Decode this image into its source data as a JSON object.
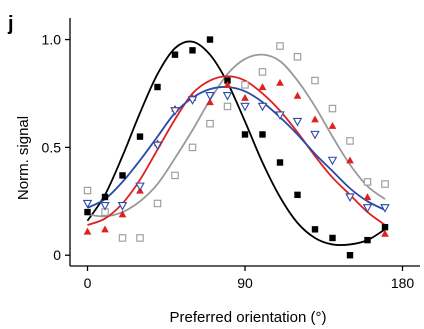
{
  "chart_data": {
    "type": "scatter",
    "panel_label": "j",
    "xlabel": "Preferred orientation (°)",
    "ylabel": "Norm. signal",
    "xlim": [
      -10,
      190
    ],
    "ylim": [
      -0.05,
      1.1
    ],
    "xticks": [
      0,
      90,
      180
    ],
    "yticks": [
      0,
      0.5,
      1.0
    ],
    "xtick_labels": [
      "0",
      "90",
      "180"
    ],
    "ytick_labels": [
      "0",
      "0.5",
      "1.0"
    ],
    "grid": false,
    "legend": false,
    "series": [
      {
        "color": "#000000",
        "marker": "filled-square",
        "points": [
          [
            0,
            0.2
          ],
          [
            10,
            0.27
          ],
          [
            20,
            0.37
          ],
          [
            30,
            0.55
          ],
          [
            40,
            0.78
          ],
          [
            50,
            0.93
          ],
          [
            60,
            0.95
          ],
          [
            70,
            1.0
          ],
          [
            80,
            0.81
          ],
          [
            90,
            0.56
          ],
          [
            100,
            0.56
          ],
          [
            110,
            0.43
          ],
          [
            120,
            0.28
          ],
          [
            130,
            0.12
          ],
          [
            140,
            0.08
          ],
          [
            150,
            0.0
          ],
          [
            160,
            0.07
          ],
          [
            170,
            0.13
          ]
        ],
        "fit": [
          [
            0,
            0.16
          ],
          [
            10,
            0.28
          ],
          [
            20,
            0.46
          ],
          [
            30,
            0.66
          ],
          [
            40,
            0.84
          ],
          [
            50,
            0.96
          ],
          [
            60,
            0.99
          ],
          [
            70,
            0.93
          ],
          [
            80,
            0.8
          ],
          [
            90,
            0.62
          ],
          [
            100,
            0.43
          ],
          [
            110,
            0.27
          ],
          [
            120,
            0.15
          ],
          [
            130,
            0.08
          ],
          [
            140,
            0.05
          ],
          [
            150,
            0.05
          ],
          [
            160,
            0.07
          ],
          [
            170,
            0.12
          ]
        ]
      },
      {
        "color": "#999999",
        "marker": "open-square",
        "points": [
          [
            0,
            0.3
          ],
          [
            10,
            0.2
          ],
          [
            20,
            0.08
          ],
          [
            30,
            0.08
          ],
          [
            40,
            0.24
          ],
          [
            50,
            0.37
          ],
          [
            60,
            0.5
          ],
          [
            70,
            0.61
          ],
          [
            80,
            0.69
          ],
          [
            90,
            0.79
          ],
          [
            100,
            0.85
          ],
          [
            110,
            0.97
          ],
          [
            120,
            0.92
          ],
          [
            130,
            0.81
          ],
          [
            140,
            0.68
          ],
          [
            150,
            0.53
          ],
          [
            160,
            0.34
          ],
          [
            170,
            0.33
          ]
        ],
        "fit": [
          [
            0,
            0.19
          ],
          [
            10,
            0.18
          ],
          [
            20,
            0.2
          ],
          [
            30,
            0.25
          ],
          [
            40,
            0.33
          ],
          [
            50,
            0.45
          ],
          [
            60,
            0.58
          ],
          [
            70,
            0.72
          ],
          [
            80,
            0.84
          ],
          [
            90,
            0.91
          ],
          [
            100,
            0.93
          ],
          [
            110,
            0.9
          ],
          [
            120,
            0.81
          ],
          [
            130,
            0.69
          ],
          [
            140,
            0.55
          ],
          [
            150,
            0.42
          ],
          [
            160,
            0.32
          ],
          [
            170,
            0.26
          ]
        ]
      },
      {
        "color": "#e02020",
        "marker": "filled-triangle",
        "points": [
          [
            0,
            0.11
          ],
          [
            10,
            0.12
          ],
          [
            20,
            0.19
          ],
          [
            30,
            0.3
          ],
          [
            40,
            0.52
          ],
          [
            50,
            0.68
          ],
          [
            60,
            0.73
          ],
          [
            70,
            0.71
          ],
          [
            80,
            0.79
          ],
          [
            90,
            0.73
          ],
          [
            100,
            0.78
          ],
          [
            110,
            0.8
          ],
          [
            120,
            0.74
          ],
          [
            130,
            0.63
          ],
          [
            140,
            0.6
          ],
          [
            150,
            0.44
          ],
          [
            160,
            0.27
          ],
          [
            170,
            0.1
          ]
        ],
        "fit": [
          [
            0,
            0.14
          ],
          [
            10,
            0.17
          ],
          [
            20,
            0.24
          ],
          [
            30,
            0.35
          ],
          [
            40,
            0.49
          ],
          [
            50,
            0.63
          ],
          [
            60,
            0.75
          ],
          [
            70,
            0.81
          ],
          [
            80,
            0.83
          ],
          [
            90,
            0.81
          ],
          [
            100,
            0.75
          ],
          [
            110,
            0.67
          ],
          [
            120,
            0.57
          ],
          [
            130,
            0.46
          ],
          [
            140,
            0.36
          ],
          [
            150,
            0.28
          ],
          [
            160,
            0.2
          ],
          [
            170,
            0.14
          ]
        ]
      },
      {
        "color": "#2a4aa8",
        "marker": "open-triangle-down",
        "points": [
          [
            0,
            0.24
          ],
          [
            10,
            0.23
          ],
          [
            20,
            0.23
          ],
          [
            30,
            0.32
          ],
          [
            40,
            0.51
          ],
          [
            50,
            0.67
          ],
          [
            60,
            0.72
          ],
          [
            70,
            0.74
          ],
          [
            80,
            0.74
          ],
          [
            90,
            0.69
          ],
          [
            100,
            0.69
          ],
          [
            110,
            0.65
          ],
          [
            120,
            0.62
          ],
          [
            130,
            0.56
          ],
          [
            140,
            0.44
          ],
          [
            150,
            0.27
          ],
          [
            160,
            0.22
          ],
          [
            170,
            0.22
          ]
        ],
        "fit": [
          [
            0,
            0.22
          ],
          [
            10,
            0.26
          ],
          [
            20,
            0.34
          ],
          [
            30,
            0.44
          ],
          [
            40,
            0.55
          ],
          [
            50,
            0.66
          ],
          [
            60,
            0.73
          ],
          [
            70,
            0.77
          ],
          [
            80,
            0.78
          ],
          [
            90,
            0.76
          ],
          [
            100,
            0.71
          ],
          [
            110,
            0.64
          ],
          [
            120,
            0.56
          ],
          [
            130,
            0.47
          ],
          [
            140,
            0.39
          ],
          [
            150,
            0.31
          ],
          [
            160,
            0.25
          ],
          [
            170,
            0.21
          ]
        ]
      }
    ]
  }
}
